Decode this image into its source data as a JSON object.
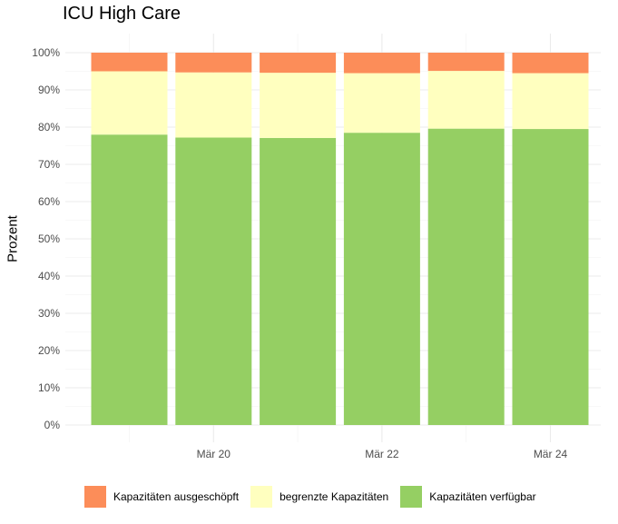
{
  "chart_data": {
    "type": "bar",
    "stacked": true,
    "percent": true,
    "title": "ICU High Care",
    "ylabel": "Prozent",
    "xlabel": "",
    "ylim": [
      0,
      100
    ],
    "y_ticks": [
      "0%",
      "10%",
      "20%",
      "30%",
      "40%",
      "50%",
      "60%",
      "70%",
      "80%",
      "90%",
      "100%"
    ],
    "x_tick_labels": [
      {
        "date": "2020-03-20",
        "label": "Mär 20"
      },
      {
        "date": "2020-03-22",
        "label": "Mär 22"
      },
      {
        "date": "2020-03-24",
        "label": "Mär 24"
      }
    ],
    "x": [
      "2020-03-19",
      "2020-03-20",
      "2020-03-21",
      "2020-03-22",
      "2020-03-23",
      "2020-03-24"
    ],
    "series": [
      {
        "name": "Kapazitäten verfügbar",
        "color": "#95CF63",
        "values": [
          78,
          77.2,
          77.1,
          78.5,
          79.6,
          79.5
        ]
      },
      {
        "name": "begrenzte Kapazitäten",
        "color": "#FFFFBF",
        "values": [
          17,
          17.5,
          17.5,
          16,
          15.5,
          15
        ]
      },
      {
        "name": "Kapazitäten ausgeschöpft",
        "color": "#FC8D59",
        "values": [
          5,
          5.3,
          5.4,
          5.5,
          4.9,
          5.5
        ]
      }
    ],
    "legend": {
      "position": "bottom",
      "order": [
        "Kapazitäten ausgeschöpft",
        "begrenzte Kapazitäten",
        "Kapazitäten verfügbar"
      ]
    },
    "grid": true
  }
}
